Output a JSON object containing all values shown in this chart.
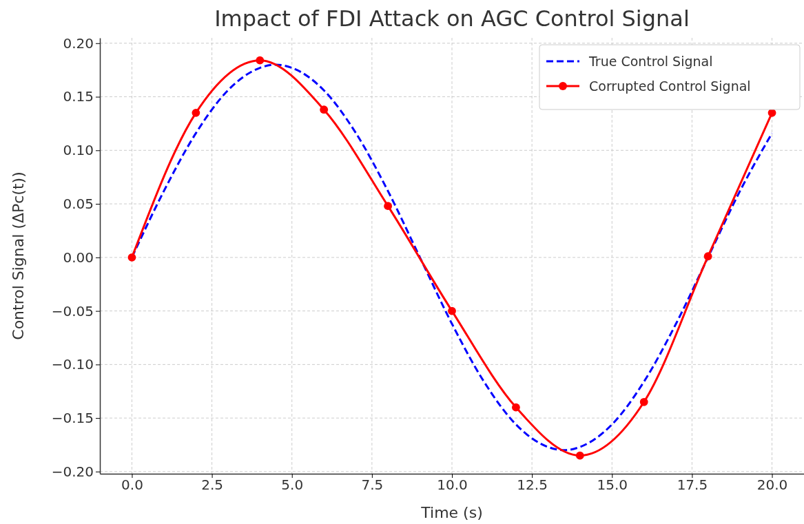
{
  "chart_data": {
    "type": "line",
    "title": "Impact of FDI Attack on AGC Control Signal",
    "xlabel": "Time (s)",
    "ylabel": "Control Signal (ΔPc(t))",
    "xlim": [
      -1,
      21
    ],
    "ylim": [
      -0.202,
      0.205
    ],
    "xticks": [
      {
        "value": 0,
        "label": "0.0"
      },
      {
        "value": 2.5,
        "label": "2.5"
      },
      {
        "value": 5,
        "label": "5.0"
      },
      {
        "value": 7.5,
        "label": "7.5"
      },
      {
        "value": 10,
        "label": "10.0"
      },
      {
        "value": 12.5,
        "label": "12.5"
      },
      {
        "value": 15,
        "label": "15.0"
      },
      {
        "value": 17.5,
        "label": "17.5"
      },
      {
        "value": 20,
        "label": "20.0"
      }
    ],
    "yticks": [
      {
        "value": -0.2,
        "label": "−0.20"
      },
      {
        "value": -0.15,
        "label": "−0.15"
      },
      {
        "value": -0.1,
        "label": "−0.10"
      },
      {
        "value": -0.05,
        "label": "−0.05"
      },
      {
        "value": 0,
        "label": "0.00"
      },
      {
        "value": 0.05,
        "label": "0.05"
      },
      {
        "value": 0.1,
        "label": "0.10"
      },
      {
        "value": 0.15,
        "label": "0.15"
      },
      {
        "value": 0.2,
        "label": "0.20"
      }
    ],
    "grid": true,
    "legend": "top right",
    "series": [
      {
        "name": "True Control Signal",
        "color": "#0000ff",
        "line_style": "dashed",
        "marker": "none",
        "x": [
          0,
          1,
          2,
          3,
          4,
          4.5,
          5,
          6,
          7,
          8,
          9,
          10,
          11,
          12,
          13,
          13.5,
          14,
          15,
          16,
          17,
          18,
          19,
          20
        ],
        "values": [
          0,
          0.062,
          0.116,
          0.156,
          0.177,
          0.18,
          0.177,
          0.156,
          0.116,
          0.062,
          0,
          -0.062,
          -0.116,
          -0.156,
          -0.177,
          -0.18,
          -0.177,
          -0.156,
          -0.116,
          -0.062,
          0,
          0.062,
          0.116
        ]
      },
      {
        "name": "Corrupted Control Signal",
        "color": "#ff0000",
        "line_style": "solid",
        "marker": "circle",
        "x": [
          0,
          2,
          4,
          6,
          8,
          10,
          12,
          14,
          16,
          18,
          20
        ],
        "values": [
          0,
          0.135,
          0.184,
          0.138,
          0.048,
          -0.05,
          -0.14,
          -0.185,
          -0.135,
          0.001,
          0.135
        ]
      }
    ]
  }
}
